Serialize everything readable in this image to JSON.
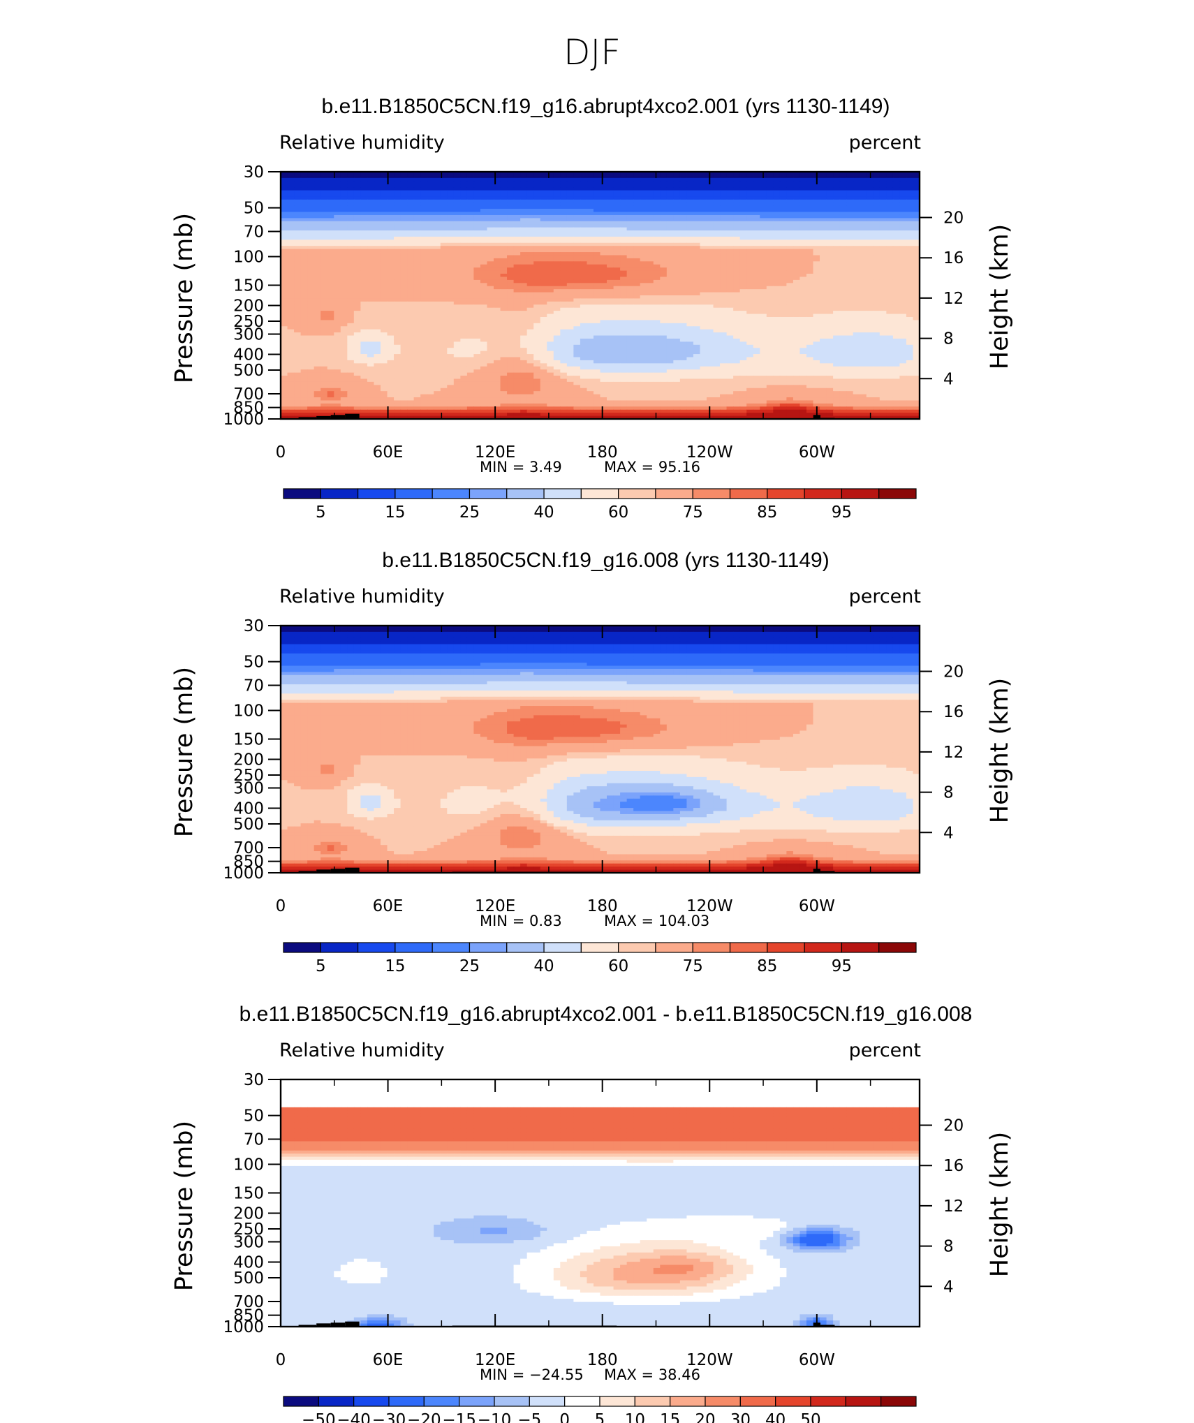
{
  "figure_title": "DJF",
  "colors": {
    "abs_scale": [
      "#0b0b7f",
      "#0826c6",
      "#1749ee",
      "#2e6af9",
      "#4c86fd",
      "#7ba3fb",
      "#a7c2f6",
      "#d0e0fa",
      "#fde6d6",
      "#fccab0",
      "#fbab8c",
      "#f68b68",
      "#f06a4a",
      "#e5452c",
      "#d2281c",
      "#b71512",
      "#8b0707"
    ],
    "diff_scale": [
      "#0b0b7f",
      "#0826c6",
      "#1749ee",
      "#2e6af9",
      "#4c86fd",
      "#7ba3fb",
      "#a7c2f6",
      "#d0e0fa",
      "#ffffff",
      "#fde6d6",
      "#fccab0",
      "#fbab8c",
      "#f68b68",
      "#f06a4a",
      "#e5452c",
      "#d2281c",
      "#b71512",
      "#8b0707"
    ],
    "topography": "#000000"
  },
  "chart_data": [
    {
      "type": "heatmap",
      "panel": "abs",
      "title": "b.e11.B1850C5CN.f19_g16.abrupt4xco2.001 (yrs 1130-1149)",
      "left_label": "Relative  humidity",
      "right_label": "percent",
      "ylabel": "Pressure  (mb)",
      "y2label": "Height  (km)",
      "x_ticks": [
        "0",
        "60E",
        "120E",
        "180",
        "120W",
        "60W"
      ],
      "x_tick_lon": [
        0,
        60,
        120,
        180,
        240,
        300
      ],
      "xlim": [
        0,
        357.5
      ],
      "y_ticks": [
        "1000",
        "850",
        "700",
        "500",
        "400",
        "300",
        "250",
        "200",
        "150",
        "100",
        "70",
        "50",
        "30"
      ],
      "y_tick_p": [
        1000,
        850,
        700,
        500,
        400,
        300,
        250,
        200,
        150,
        100,
        70,
        50,
        30
      ],
      "ylim_mb": [
        1000,
        30
      ],
      "height_ticks": [
        "4",
        "8",
        "12",
        "16",
        "20"
      ],
      "height_km": [
        4,
        8,
        12,
        16,
        20
      ],
      "min_text": "MIN =     3.49",
      "max_text": "MAX =    95.16",
      "min": 3.49,
      "max": 95.16,
      "levels": [
        5,
        10,
        15,
        20,
        25,
        30,
        40,
        50,
        60,
        65,
        75,
        80,
        85,
        90,
        95
      ],
      "colorbar_labels": [
        "5",
        "15",
        "25",
        "40",
        "60",
        "75",
        "85",
        "95"
      ],
      "colorbar_label_slots": [
        0,
        2,
        4,
        6,
        8,
        10,
        12,
        14
      ],
      "max_region": [
        140,
        150
      ]
    },
    {
      "type": "heatmap",
      "panel": "abs",
      "title": "b.e11.B1850C5CN.f19_g16.008 (yrs 1130-1149)",
      "left_label": "Relative  humidity",
      "right_label": "percent",
      "ylabel": "Pressure  (mb)",
      "y2label": "Height  (km)",
      "x_ticks": [
        "0",
        "60E",
        "120E",
        "180",
        "120W",
        "60W"
      ],
      "x_tick_lon": [
        0,
        60,
        120,
        180,
        240,
        300
      ],
      "xlim": [
        0,
        357.5
      ],
      "y_ticks": [
        "1000",
        "850",
        "700",
        "500",
        "400",
        "300",
        "250",
        "200",
        "150",
        "100",
        "70",
        "50",
        "30"
      ],
      "y_tick_p": [
        1000,
        850,
        700,
        500,
        400,
        300,
        250,
        200,
        150,
        100,
        70,
        50,
        30
      ],
      "ylim_mb": [
        1000,
        30
      ],
      "height_ticks": [
        "4",
        "8",
        "12",
        "16",
        "20"
      ],
      "height_km": [
        4,
        8,
        12,
        16,
        20
      ],
      "min_text": "MIN =     0.83",
      "max_text": "MAX =  104.03",
      "min": 0.83,
      "max": 104.03,
      "levels": [
        5,
        10,
        15,
        20,
        25,
        30,
        40,
        50,
        60,
        65,
        75,
        80,
        85,
        90,
        95
      ],
      "colorbar_labels": [
        "5",
        "15",
        "25",
        "40",
        "60",
        "75",
        "85",
        "95"
      ],
      "colorbar_label_slots": [
        0,
        2,
        4,
        6,
        8,
        10,
        12,
        14
      ],
      "max_region": [
        150,
        170
      ]
    },
    {
      "type": "heatmap",
      "panel": "diff",
      "title": "b.e11.B1850C5CN.f19_g16.abrupt4xco2.001 - b.e11.B1850C5CN.f19_g16.008",
      "left_label": "Relative  humidity",
      "right_label": "percent",
      "ylabel": "Pressure  (mb)",
      "y2label": "Height  (km)",
      "x_ticks": [
        "0",
        "60E",
        "120E",
        "180",
        "120W",
        "60W"
      ],
      "x_tick_lon": [
        0,
        60,
        120,
        180,
        240,
        300
      ],
      "xlim": [
        0,
        357.5
      ],
      "y_ticks": [
        "1000",
        "850",
        "700",
        "500",
        "400",
        "300",
        "250",
        "200",
        "150",
        "100",
        "70",
        "50",
        "30"
      ],
      "y_tick_p": [
        1000,
        850,
        700,
        500,
        400,
        300,
        250,
        200,
        150,
        100,
        70,
        50,
        30
      ],
      "ylim_mb": [
        1000,
        30
      ],
      "height_ticks": [
        "4",
        "8",
        "12",
        "16",
        "20"
      ],
      "height_km": [
        4,
        8,
        12,
        16,
        20
      ],
      "min_text": "MIN = −24.55",
      "max_text": "MAX =    38.46",
      "min": -24.55,
      "max": 38.46,
      "levels": [
        -50,
        -40,
        -30,
        -20,
        -15,
        -10,
        -5,
        0,
        5,
        10,
        15,
        20,
        30,
        40,
        50
      ],
      "colorbar_labels": [
        "−50",
        "−40",
        "−30",
        "−20",
        "−15",
        "−10",
        "−5",
        "0",
        "5",
        "10",
        "15",
        "20",
        "30",
        "40",
        "50"
      ],
      "colorbar_label_slots": [
        0,
        1,
        2,
        3,
        4,
        5,
        6,
        7,
        8,
        9,
        10,
        11,
        12,
        13,
        14
      ]
    }
  ]
}
